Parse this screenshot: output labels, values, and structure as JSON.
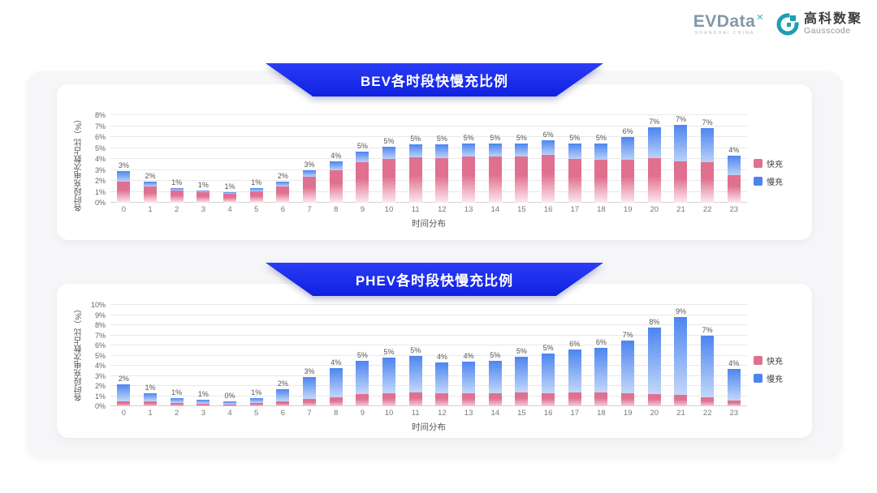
{
  "header": {
    "evdata_text": "EVData",
    "evdata_sup": "✕",
    "evdata_sub": "SHANGHAI CHINA",
    "gausscode_cn": "高科数聚",
    "gausscode_en": "Gausscode"
  },
  "colors": {
    "banner_blue": "#1630f2",
    "fast_pink": "#e0708f",
    "slow_blue": "#4d85ef",
    "container_gray": "#f6f6f8"
  },
  "chart_data": [
    {
      "type": "bar",
      "stacked": true,
      "title": "BEV各时段快慢充比例",
      "xlabel": "时间分布",
      "ylabel": "各时段充电次数占比（%）",
      "ylim": [
        0,
        8
      ],
      "ytick_step": 1,
      "grid": true,
      "legend_position": "right",
      "categories": [
        "0",
        "1",
        "2",
        "3",
        "4",
        "5",
        "6",
        "7",
        "8",
        "9",
        "10",
        "11",
        "12",
        "13",
        "14",
        "15",
        "16",
        "17",
        "18",
        "19",
        "20",
        "21",
        "22",
        "23"
      ],
      "bar_labels": [
        "3%",
        "2%",
        "1%",
        "1%",
        "1%",
        "1%",
        "2%",
        "3%",
        "4%",
        "5%",
        "5%",
        "5%",
        "5%",
        "5%",
        "5%",
        "5%",
        "6%",
        "5%",
        "5%",
        "6%",
        "7%",
        "7%",
        "7%",
        "4%"
      ],
      "series": [
        {
          "name": "快充",
          "color": "#e0708f",
          "color_light": "#fce9ef",
          "values": [
            1.9,
            1.5,
            1.1,
            0.95,
            0.85,
            1.05,
            1.5,
            2.4,
            3.0,
            3.7,
            4.0,
            4.15,
            4.1,
            4.2,
            4.2,
            4.2,
            4.4,
            4.0,
            3.9,
            3.9,
            4.1,
            3.9,
            3.7,
            2.5
          ]
        },
        {
          "name": "慢充",
          "color": "#4d85ef",
          "color_light": "#b9d1f8",
          "values": [
            1.0,
            0.4,
            0.25,
            0.2,
            0.15,
            0.25,
            0.45,
            0.6,
            0.8,
            1.0,
            1.1,
            1.15,
            1.2,
            1.2,
            1.2,
            1.2,
            1.3,
            1.4,
            1.5,
            2.1,
            2.8,
            3.4,
            3.1,
            1.8
          ]
        }
      ]
    },
    {
      "type": "bar",
      "stacked": true,
      "title": "PHEV各时段快慢充比例",
      "xlabel": "时间分布",
      "ylabel": "各时段充电次数占比（%）",
      "ylim": [
        0,
        10
      ],
      "ytick_step": 1,
      "grid": true,
      "legend_position": "right",
      "categories": [
        "0",
        "1",
        "2",
        "3",
        "4",
        "5",
        "6",
        "7",
        "8",
        "9",
        "10",
        "11",
        "12",
        "13",
        "14",
        "15",
        "16",
        "17",
        "18",
        "19",
        "20",
        "21",
        "22",
        "23"
      ],
      "bar_labels": [
        "2%",
        "1%",
        "1%",
        "1%",
        "0%",
        "1%",
        "2%",
        "3%",
        "4%",
        "5%",
        "5%",
        "5%",
        "4%",
        "4%",
        "5%",
        "5%",
        "5%",
        "6%",
        "6%",
        "7%",
        "8%",
        "9%",
        "7%",
        "4%"
      ],
      "series": [
        {
          "name": "快充",
          "color": "#e0708f",
          "color_light": "#f6cdd9",
          "values": [
            0.5,
            0.45,
            0.3,
            0.25,
            0.2,
            0.3,
            0.5,
            0.7,
            0.9,
            1.2,
            1.3,
            1.4,
            1.3,
            1.3,
            1.3,
            1.4,
            1.3,
            1.4,
            1.4,
            1.3,
            1.2,
            1.1,
            0.9,
            0.6
          ]
        },
        {
          "name": "慢充",
          "color": "#4d85ef",
          "color_light": "#c3d7f9",
          "values": [
            1.7,
            0.8,
            0.5,
            0.4,
            0.3,
            0.5,
            1.2,
            2.2,
            2.9,
            3.3,
            3.5,
            3.6,
            3.0,
            3.1,
            3.2,
            3.5,
            3.9,
            4.2,
            4.4,
            5.2,
            6.6,
            7.7,
            6.1,
            3.1
          ]
        }
      ]
    }
  ]
}
